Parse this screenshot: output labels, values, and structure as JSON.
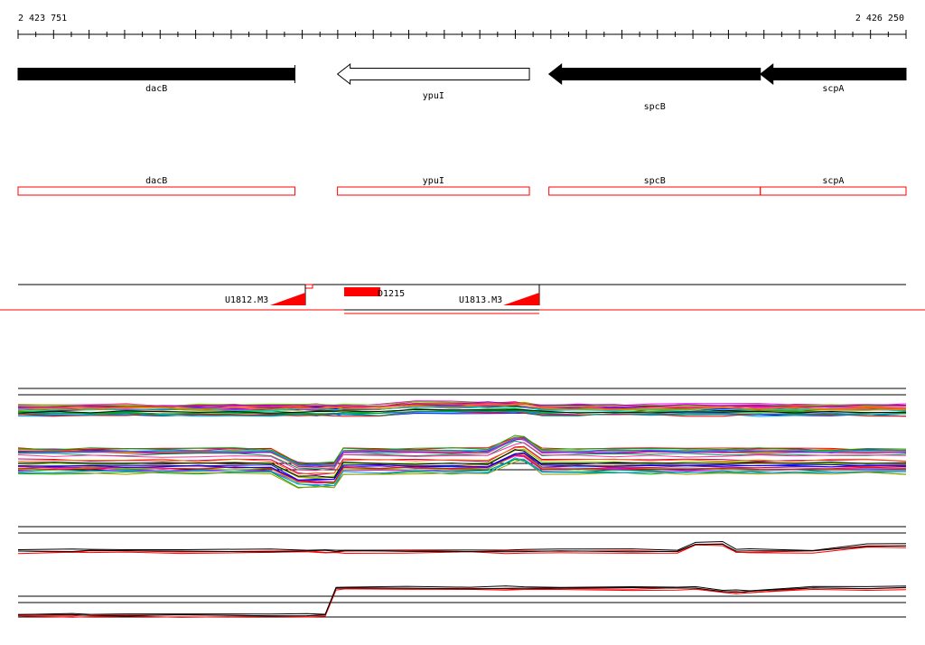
{
  "coordinates": {
    "start": "2 423 751",
    "end": "2 426 250",
    "start_bp": 2423751,
    "end_bp": 2426250
  },
  "colors": {
    "gene_fill": "#000000",
    "annotation_red": "#ff0000",
    "track_line": "#000000"
  },
  "genes": [
    {
      "id": "dacB",
      "label": "dacB",
      "start_bp": 2423751,
      "end_bp": 2424530,
      "strand": "+",
      "fill": "#000000"
    },
    {
      "id": "ypuI",
      "label": "ypuI",
      "start_bp": 2424650,
      "end_bp": 2425190,
      "strand": "-",
      "fill": "#ffffff"
    },
    {
      "id": "spcB",
      "label": "spcB",
      "start_bp": 2425245,
      "end_bp": 2425840,
      "strand": "-",
      "fill": "#000000"
    },
    {
      "id": "scpA",
      "label": "scpA",
      "start_bp": 2425840,
      "end_bp": 2426250,
      "strand": "-",
      "fill": "#000000"
    }
  ],
  "annotation_boxes": [
    {
      "id": "dacB",
      "label": "dacB",
      "start_bp": 2423751,
      "end_bp": 2424530
    },
    {
      "id": "ypuI",
      "label": "ypuI",
      "start_bp": 2424650,
      "end_bp": 2425190
    },
    {
      "id": "spcB",
      "label": "spcB",
      "start_bp": 2425245,
      "end_bp": 2425840
    },
    {
      "id": "scpA",
      "label": "scpA",
      "start_bp": 2425840,
      "end_bp": 2426250
    }
  ],
  "transcripts": [
    {
      "id": "U1812.M3",
      "label": "U1812.M3",
      "kind": "ramp",
      "start_bp": 2423751,
      "end_bp": 2424560
    },
    {
      "id": "D1215",
      "label": "D1215",
      "kind": "block",
      "start_bp": 2424660,
      "end_bp": 2425200
    },
    {
      "id": "U1813.M3",
      "label": "U1813.M3",
      "kind": "ramp",
      "start_bp": 2424660,
      "end_bp": 2425215
    }
  ]
}
